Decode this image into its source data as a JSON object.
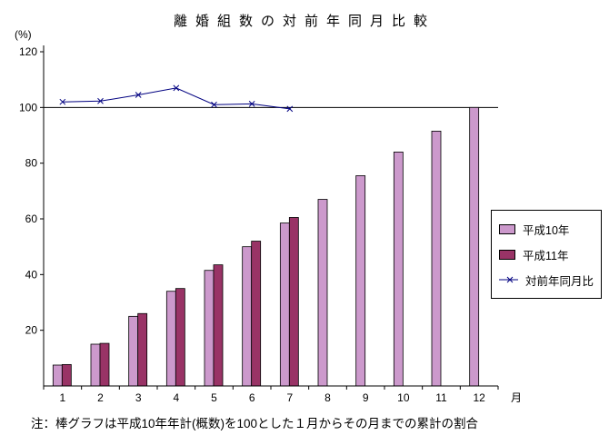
{
  "title": "離婚組数の対前年同月比較",
  "ylabel": "(%)",
  "xlabel": "月",
  "note": "注：棒グラフは平成10年年計(概数)を100とした１月からその月までの累計の割合",
  "colors": {
    "heisei10": "#cc99cc",
    "heisei11": "#993366",
    "line": "#000080",
    "axis": "#000000",
    "background": "#ffffff"
  },
  "legend": {
    "items": [
      {
        "label": "平成10年",
        "type": "bar",
        "colorKey": "heisei10"
      },
      {
        "label": "平成11年",
        "type": "bar",
        "colorKey": "heisei11"
      },
      {
        "label": "対前年同月比",
        "type": "line",
        "colorKey": "line"
      }
    ]
  },
  "chart_data": {
    "type": "bar",
    "title": "離婚組数の対前年同月比較",
    "xlabel": "月",
    "ylabel": "(%)",
    "categories": [
      "1",
      "2",
      "3",
      "4",
      "5",
      "6",
      "7",
      "8",
      "9",
      "10",
      "11",
      "12"
    ],
    "ylim": [
      0,
      120
    ],
    "yticks": [
      20,
      40,
      60,
      80,
      100,
      120
    ],
    "reference_line": 100,
    "grid": false,
    "legend_position": "right",
    "series": [
      {
        "name": "平成10年",
        "type": "bar",
        "values": [
          7.5,
          15,
          25,
          34,
          41.5,
          50,
          58.5,
          67,
          75.5,
          84,
          91.5,
          100
        ]
      },
      {
        "name": "平成11年",
        "type": "bar",
        "values": [
          7.7,
          15.3,
          26,
          35,
          43.5,
          52,
          60.5,
          null,
          null,
          null,
          null,
          null
        ]
      },
      {
        "name": "対前年同月比",
        "type": "line",
        "values": [
          102,
          102.3,
          104.5,
          107,
          101,
          101.3,
          99.5,
          null,
          null,
          null,
          null,
          null
        ]
      }
    ]
  }
}
